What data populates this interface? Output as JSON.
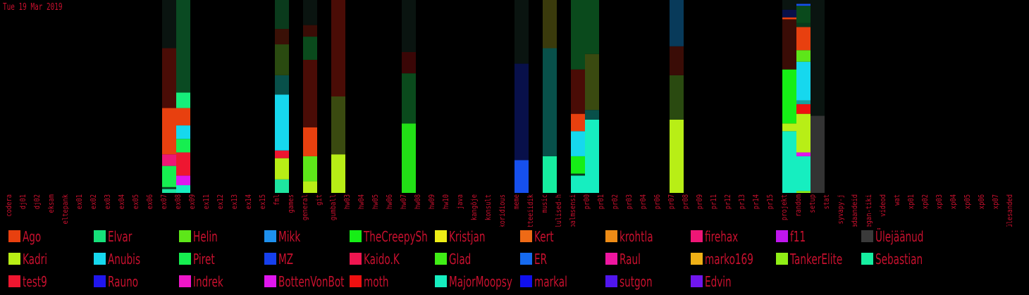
{
  "date_label": "Tue 19 Mar 2019",
  "chart_data": {
    "type": "bar",
    "stacked": true,
    "orientation": "vertical",
    "ylim": [
      0,
      100
    ],
    "categories": [
      "codera",
      "dj01",
      "dj02",
      "eksam",
      "eltepank",
      "ex01",
      "ex02",
      "ex03",
      "ex04",
      "ex05",
      "ex06",
      "ex07",
      "ex08",
      "ex09",
      "ex11",
      "ex12",
      "ex13",
      "ex14",
      "ex15",
      "fml",
      "games",
      "general",
      "git",
      "gumball",
      "hw03",
      "hw04",
      "hw05",
      "hw06",
      "hw07",
      "hw08",
      "hw09",
      "hw10",
      "java",
      "kangõje",
      "konsult",
      "koridious",
      "meme",
      "mitteeiidik",
      "music",
      "olulised-h",
      "palmsensi",
      "pr00",
      "pr01",
      "pr02",
      "pr03",
      "pr04",
      "pr06",
      "pr07",
      "pr08",
      "pr09",
      "pr11",
      "pr12",
      "pr13",
      "pr14",
      "pr15",
      "projekt",
      "random",
      "setup",
      "stat",
      "syvapy-j",
      "teadaandeid",
      "vegan-tiki",
      "videod",
      "wat",
      "xp01",
      "xp02",
      "xp03",
      "xp04",
      "xp05",
      "xp06",
      "xp07",
      "ülesanded"
    ],
    "legend": [
      {
        "name": "Ago",
        "color": "#e8400f"
      },
      {
        "name": "Elvar",
        "color": "#16e07a"
      },
      {
        "name": "Helin",
        "color": "#5de619"
      },
      {
        "name": "Mikk",
        "color": "#1e90ee"
      },
      {
        "name": "TheCreepySh",
        "color": "#16ee16"
      },
      {
        "name": "Kristjan",
        "color": "#eeee16"
      },
      {
        "name": "Kert",
        "color": "#ee6a16"
      },
      {
        "name": "krohtla",
        "color": "#ee8c16"
      },
      {
        "name": "firehax",
        "color": "#ee1676"
      },
      {
        "name": "f11",
        "color": "#c016ee"
      },
      {
        "name": "Ülejäänud",
        "color": "#3a3a3a"
      },
      {
        "name": "Kadri",
        "color": "#b8ee16"
      },
      {
        "name": "Anubis",
        "color": "#16d8ee"
      },
      {
        "name": "Piret",
        "color": "#16ee50"
      },
      {
        "name": "MZ",
        "color": "#1640ee"
      },
      {
        "name": "Kaido.K",
        "color": "#ee1650"
      },
      {
        "name": "Glad",
        "color": "#40ee16"
      },
      {
        "name": "ER",
        "color": "#166aee"
      },
      {
        "name": "Raul",
        "color": "#ee16a0"
      },
      {
        "name": "marko169",
        "color": "#eeb016"
      },
      {
        "name": "TankerElite",
        "color": "#90ee16"
      },
      {
        "name": "Sebastian",
        "color": "#16eea0"
      },
      {
        "name": "test9",
        "color": "#ee1630"
      },
      {
        "name": "Rauno",
        "color": "#2016ee"
      },
      {
        "name": "Indrek",
        "color": "#ee16c8"
      },
      {
        "name": "BottenVonBot",
        "color": "#e016ee"
      },
      {
        "name": "moth",
        "color": "#ee1010"
      },
      {
        "name": "MajorMoopsy",
        "color": "#16eec0"
      },
      {
        "name": "markal",
        "color": "#1010ee"
      },
      {
        "name": "sutgon",
        "color": "#5016ee"
      },
      {
        "name": "Edvin",
        "color": "#7016ee"
      }
    ],
    "bars": [
      {
        "category": "ex07",
        "segments": [
          {
            "value": 2,
            "color": "#1ee6a0"
          },
          {
            "value": 1,
            "color": "#083a20"
          },
          {
            "value": 11,
            "color": "#16ee50"
          },
          {
            "value": 6,
            "color": "#ee1676"
          },
          {
            "value": 24,
            "color": "#e8400f"
          },
          {
            "value": 31,
            "color": "#4a0c06"
          },
          {
            "value": 25,
            "color": "#0a1410"
          }
        ]
      },
      {
        "category": "ex08",
        "segments": [
          {
            "value": 4,
            "color": "#16eec0"
          },
          {
            "value": 5,
            "color": "#e016ee"
          },
          {
            "value": 12,
            "color": "#ee1630"
          },
          {
            "value": 7,
            "color": "#16ee50"
          },
          {
            "value": 7,
            "color": "#16d8ee"
          },
          {
            "value": 9,
            "color": "#e8400f"
          },
          {
            "value": 8,
            "color": "#16ee7a"
          },
          {
            "value": 48,
            "color": "#0a4a22"
          }
        ]
      },
      {
        "category": "fml",
        "segments": [
          {
            "value": 7,
            "color": "#1ee6a0"
          },
          {
            "value": 11,
            "color": "#b8ee16"
          },
          {
            "value": 4,
            "color": "#ee1630"
          },
          {
            "value": 29,
            "color": "#16d8ee"
          },
          {
            "value": 10,
            "color": "#08504a"
          },
          {
            "value": 16,
            "color": "#2a4a10"
          },
          {
            "value": 8,
            "color": "#3a1006"
          },
          {
            "value": 15,
            "color": "#0a3a1c"
          }
        ]
      },
      {
        "category": "general",
        "segments": [
          {
            "value": 6,
            "color": "#b8ee16"
          },
          {
            "value": 13,
            "color": "#5de619"
          },
          {
            "value": 15,
            "color": "#e8400f"
          },
          {
            "value": 35,
            "color": "#4a0c06"
          },
          {
            "value": 12,
            "color": "#0a4a1c"
          },
          {
            "value": 6,
            "color": "#3a0c06"
          },
          {
            "value": 13,
            "color": "#0a1410"
          }
        ]
      },
      {
        "category": "gumball",
        "segments": [
          {
            "value": 20,
            "color": "#b8ee16"
          },
          {
            "value": 30,
            "color": "#3a4a10"
          },
          {
            "value": 50,
            "color": "#4a0c06"
          }
        ]
      },
      {
        "category": "hw07",
        "segments": [
          {
            "value": 36,
            "color": "#22e016"
          },
          {
            "value": 26,
            "color": "#0a4a1c"
          },
          {
            "value": 11,
            "color": "#3a0606"
          },
          {
            "value": 27,
            "color": "#0a1410"
          }
        ]
      },
      {
        "category": "meme",
        "segments": [
          {
            "value": 17,
            "color": "#1650ee"
          },
          {
            "value": 50,
            "color": "#08104a"
          },
          {
            "value": 33,
            "color": "#0a1410"
          }
        ]
      },
      {
        "category": "music",
        "segments": [
          {
            "value": 19,
            "color": "#16eea0"
          },
          {
            "value": 56,
            "color": "#08504a"
          },
          {
            "value": 25,
            "color": "#3a3a0c"
          }
        ]
      },
      {
        "category": "palmsensi",
        "segments": [
          {
            "value": 9,
            "color": "#16eec0"
          },
          {
            "value": 1,
            "color": "#083a20"
          },
          {
            "value": 9,
            "color": "#16ee16"
          },
          {
            "value": 13,
            "color": "#16d8ee"
          },
          {
            "value": 9,
            "color": "#e8400f"
          },
          {
            "value": 23,
            "color": "#4a0c06"
          },
          {
            "value": 36,
            "color": "#0a4a1c"
          }
        ]
      },
      {
        "category": "pr00",
        "segments": [
          {
            "value": 38,
            "color": "#16eec0"
          },
          {
            "value": 5,
            "color": "#08504a"
          },
          {
            "value": 29,
            "color": "#3a4a10"
          },
          {
            "value": 28,
            "color": "#0a4a1c"
          }
        ]
      },
      {
        "category": "pr07",
        "segments": [
          {
            "value": 38,
            "color": "#b8ee16"
          },
          {
            "value": 23,
            "color": "#2a4a10"
          },
          {
            "value": 15,
            "color": "#3a0c06"
          },
          {
            "value": 24,
            "color": "#083a5a"
          }
        ]
      },
      {
        "category": "projekt",
        "segments": [
          {
            "value": 32,
            "color": "#16eec0"
          },
          {
            "value": 4,
            "color": "#b8ee16"
          },
          {
            "value": 28,
            "color": "#16ee16"
          },
          {
            "value": 26,
            "color": "#3a0c06"
          },
          {
            "value": 1,
            "color": "#e8400f"
          },
          {
            "value": 4,
            "color": "#08104a"
          },
          {
            "value": 5,
            "color": "#0a1410"
          }
        ]
      },
      {
        "category": "random",
        "segments": [
          {
            "value": 1,
            "color": "#90ee16"
          },
          {
            "value": 18,
            "color": "#16eec0"
          },
          {
            "value": 2,
            "color": "#e016ee"
          },
          {
            "value": 20,
            "color": "#b8ee16"
          },
          {
            "value": 5,
            "color": "#ee1010"
          },
          {
            "value": 2,
            "color": "#16a0a0"
          },
          {
            "value": 20,
            "color": "#16d8ee"
          },
          {
            "value": 6,
            "color": "#5de619"
          },
          {
            "value": 12,
            "color": "#e8400f"
          },
          {
            "value": 2,
            "color": "#0a3a1c"
          },
          {
            "value": 9,
            "color": "#0a4a1c"
          },
          {
            "value": 1,
            "color": "#1650ee"
          },
          {
            "value": 2,
            "color": "#0a1410"
          }
        ]
      },
      {
        "category": "setup",
        "segments": [
          {
            "value": 40,
            "color": "#333333"
          },
          {
            "value": 60,
            "color": "#0a1410"
          }
        ]
      }
    ]
  }
}
